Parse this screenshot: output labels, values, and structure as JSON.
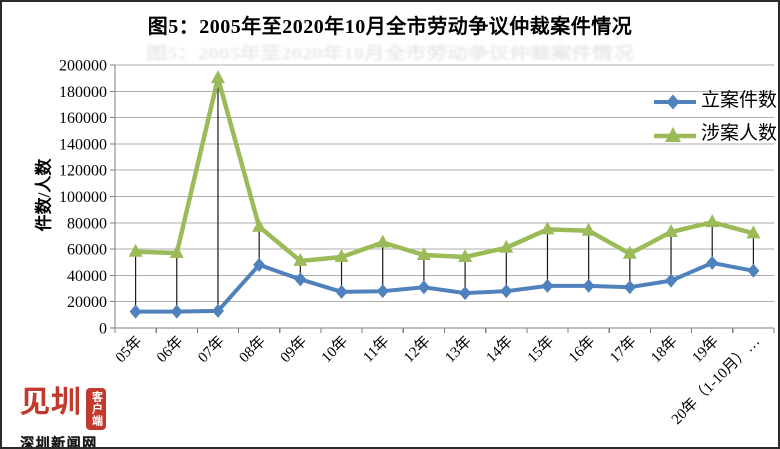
{
  "title": "图5：2005年至2020年10月全市劳动争议仲裁案件情况",
  "chart_data": {
    "type": "line",
    "title": "图5：2005年至2020年10月全市劳动争议仲裁案件情况",
    "ylabel": "件数/人数",
    "xlabel": "",
    "ylim": [
      0,
      200000
    ],
    "ytick_step": 20000,
    "grid": true,
    "legend_position": "inside-top-right",
    "high_low_lines": true,
    "categories": [
      "05年",
      "06年",
      "07年",
      "08年",
      "09年",
      "10年",
      "11年",
      "12年",
      "13年",
      "14年",
      "15年",
      "16年",
      "17年",
      "18年",
      "19年",
      "20年（1-10月）…"
    ],
    "series": [
      {
        "name": "立案件数",
        "color": "#4F81BD",
        "marker": "diamond",
        "values": [
          12500,
          12500,
          13000,
          48000,
          37000,
          27500,
          28000,
          31000,
          26500,
          28000,
          32000,
          32000,
          31000,
          36000,
          49500,
          43500
        ]
      },
      {
        "name": "涉案人数",
        "color": "#9BBB59",
        "marker": "triangle",
        "values": [
          58000,
          57000,
          190000,
          77000,
          51000,
          54000,
          65000,
          55500,
          54000,
          61000,
          75000,
          74000,
          56500,
          73000,
          80500,
          72000
        ]
      }
    ]
  },
  "colors": {
    "gridline": "#ADADAD",
    "axis": "#7F7F7F",
    "drop_line": "#1A1A1A",
    "logo_red": "#C23A2E"
  },
  "logo": {
    "brand": "见圳",
    "badge": "客户端",
    "sub": "深圳新闻网"
  }
}
